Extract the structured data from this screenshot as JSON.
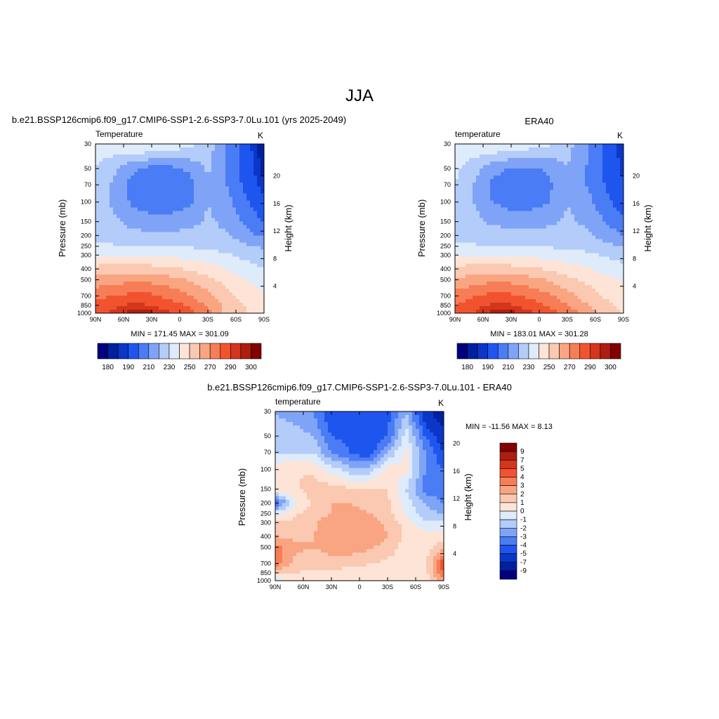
{
  "page_title": "JJA",
  "colors": {
    "abs_levels": [
      "#00007f",
      "#0020a0",
      "#0a37c8",
      "#1f55ef",
      "#4a7cf5",
      "#7fa4f7",
      "#b3ccf9",
      "#deebfb",
      "#fde4d6",
      "#fbc8b1",
      "#f9a582",
      "#f77d56",
      "#f2532f",
      "#d3361c",
      "#ad1e10",
      "#840000"
    ],
    "diff_levels": [
      "#00007f",
      "#0020a0",
      "#0a37c8",
      "#1f55ef",
      "#4a7cf5",
      "#7fa4f7",
      "#b3ccf9",
      "#deebfb",
      "#fde4d6",
      "#fbc8b1",
      "#f9a582",
      "#f77d56",
      "#f2532f",
      "#d3361c",
      "#ad1e10",
      "#840000"
    ]
  },
  "chart_data": [
    {
      "type": "heatmap",
      "title": "b.e21.BSSP126cmip6.f09_g17.CMIP6-SSP1-2.6-SSP3-7.0Lu.101 (yrs 2025-2049)",
      "left_label": "Temperature",
      "units": "K",
      "ylabel": "Pressure (mb)",
      "y2label": "Height (km)",
      "x_ticks": [
        "90N",
        "60N",
        "30N",
        "0",
        "30S",
        "60S",
        "90S"
      ],
      "y_ticks": [
        "30",
        "50",
        "70",
        "100",
        "150",
        "200",
        "250",
        "300",
        "400",
        "500",
        "700",
        "850",
        "1000"
      ],
      "y2_ticks": [
        "20",
        "16",
        "12",
        "8",
        "4"
      ],
      "stats": "MIN = 171.45  MAX = 301.09",
      "colorbar_labels": [
        "180",
        "190",
        "210",
        "230",
        "250",
        "270",
        "290",
        "300"
      ],
      "field": {
        "base": [
          [
            235,
            238,
            242,
            242,
            238,
            233,
            225,
            210,
            195,
            180
          ],
          [
            230,
            222,
            212,
            207,
            207,
            212,
            222,
            208,
            195,
            182
          ],
          [
            228,
            218,
            206,
            200,
            200,
            206,
            218,
            210,
            198,
            186
          ],
          [
            226,
            218,
            208,
            204,
            204,
            208,
            220,
            214,
            202,
            192
          ],
          [
            225,
            222,
            216,
            214,
            214,
            216,
            222,
            217,
            208,
            199
          ],
          [
            226,
            225,
            224,
            222,
            222,
            224,
            224,
            221,
            214,
            208
          ],
          [
            232,
            231,
            230,
            229,
            229,
            229,
            228,
            226,
            222,
            218
          ],
          [
            240,
            240,
            239,
            238,
            237,
            236,
            234,
            231,
            227,
            224
          ],
          [
            253,
            254,
            255,
            254,
            252,
            249,
            245,
            240,
            235,
            230
          ],
          [
            264,
            266,
            268,
            267,
            264,
            259,
            253,
            246,
            240,
            236
          ],
          [
            277,
            280,
            283,
            282,
            277,
            271,
            263,
            254,
            246,
            240
          ],
          [
            283,
            288,
            292,
            290,
            285,
            278,
            268,
            258,
            250,
            244
          ],
          [
            286,
            292,
            298,
            297,
            291,
            284,
            274,
            255,
            250,
            244
          ]
        ]
      },
      "levels": [
        180,
        185,
        190,
        200,
        210,
        220,
        230,
        240,
        250,
        260,
        270,
        280,
        290,
        295,
        300
      ]
    },
    {
      "type": "heatmap",
      "title": "ERA40",
      "left_label": "temperature",
      "units": "K",
      "ylabel": "Pressure (mb)",
      "y2label": "Height (km)",
      "x_ticks": [
        "90N",
        "60N",
        "30N",
        "0",
        "30S",
        "60S",
        "90S"
      ],
      "y_ticks": [
        "30",
        "50",
        "70",
        "100",
        "150",
        "200",
        "250",
        "300",
        "400",
        "500",
        "700",
        "850",
        "1000"
      ],
      "y2_ticks": [
        "20",
        "16",
        "12",
        "8",
        "4"
      ],
      "stats": "MIN = 183.01  MAX = 301.28",
      "colorbar_labels": [
        "180",
        "190",
        "210",
        "230",
        "250",
        "270",
        "290",
        "300"
      ],
      "field": {
        "base": [
          [
            236,
            238,
            240,
            240,
            236,
            232,
            224,
            212,
            198,
            185
          ],
          [
            232,
            224,
            214,
            208,
            208,
            212,
            220,
            210,
            198,
            188
          ],
          [
            230,
            220,
            208,
            204,
            204,
            208,
            218,
            210,
            200,
            190
          ],
          [
            228,
            220,
            210,
            206,
            206,
            210,
            220,
            214,
            204,
            194
          ],
          [
            226,
            223,
            218,
            216,
            216,
            218,
            222,
            218,
            210,
            202
          ],
          [
            226,
            226,
            225,
            224,
            224,
            224,
            224,
            222,
            216,
            210
          ],
          [
            232,
            231,
            230,
            229,
            229,
            229,
            228,
            227,
            223,
            219
          ],
          [
            240,
            240,
            239,
            238,
            237,
            236,
            234,
            232,
            229,
            226
          ],
          [
            252,
            254,
            255,
            254,
            252,
            249,
            245,
            241,
            237,
            233
          ],
          [
            262,
            265,
            268,
            267,
            264,
            259,
            253,
            248,
            243,
            239
          ],
          [
            274,
            279,
            283,
            282,
            278,
            272,
            264,
            256,
            249,
            244
          ],
          [
            280,
            286,
            292,
            291,
            286,
            279,
            270,
            261,
            253,
            247
          ],
          [
            284,
            290,
            298,
            298,
            292,
            285,
            276,
            266,
            257,
            250
          ]
        ]
      },
      "levels": [
        180,
        185,
        190,
        200,
        210,
        220,
        230,
        240,
        250,
        260,
        270,
        280,
        290,
        295,
        300
      ]
    },
    {
      "type": "heatmap",
      "title": "b.e21.BSSP126cmip6.f09_g17.CMIP6-SSP1-2.6-SSP3-7.0Lu.101 - ERA40",
      "left_label": "temperature",
      "units": "K",
      "ylabel": "Pressure (mb)",
      "y2label": "Height (km)",
      "x_ticks": [
        "90N",
        "60N",
        "30N",
        "0",
        "30S",
        "60S",
        "90S"
      ],
      "y_ticks": [
        "30",
        "50",
        "70",
        "100",
        "150",
        "200",
        "250",
        "300",
        "400",
        "500",
        "700",
        "850",
        "1000"
      ],
      "y2_ticks": [
        "20",
        "16",
        "12",
        "8",
        "4"
      ],
      "stats": "MIN = -11.56  MAX =   8.13",
      "colorbar_labels": [
        "9",
        "7",
        "5",
        "4",
        "3",
        "2",
        "1",
        "0",
        "-1",
        "-2",
        "-3",
        "-4",
        "-5",
        "-7",
        "-9"
      ],
      "field": {
        "base": [
          [
            -2,
            -2.5,
            -3,
            -5,
            -4,
            -5,
            -4.5,
            -2,
            -6,
            -9
          ],
          [
            -1.5,
            -1.5,
            -2,
            -4,
            -4.5,
            -5,
            -4,
            -0.5,
            -4,
            -6
          ],
          [
            -1,
            -1,
            -1,
            -3,
            -4,
            -5,
            -2,
            0.2,
            -3,
            -5
          ],
          [
            0.5,
            1,
            0.8,
            -0.5,
            -1.5,
            -1.5,
            0.5,
            0.3,
            -3,
            -4
          ],
          [
            0.5,
            0.8,
            1.5,
            1.5,
            1.2,
            1.2,
            1,
            -1,
            -3.5,
            -4
          ],
          [
            -4,
            -0.5,
            1.2,
            2,
            2,
            1.8,
            1.2,
            -0.5,
            -2,
            -3
          ],
          [
            -0.5,
            0.8,
            1.5,
            2,
            2.2,
            2,
            1.5,
            -0.2,
            -1.5,
            -2
          ],
          [
            1,
            1.2,
            1.8,
            2.5,
            3,
            2.5,
            1.8,
            0.5,
            -0.8,
            -1
          ],
          [
            2,
            1.8,
            2,
            2.5,
            3,
            3,
            2,
            0.8,
            0.5,
            0.8
          ],
          [
            3.5,
            2.2,
            2,
            2.2,
            2.5,
            2.2,
            1.5,
            0.5,
            0.5,
            1.5
          ],
          [
            3.5,
            1.8,
            1.5,
            1.8,
            1.5,
            1,
            0.8,
            0.5,
            0.5,
            5
          ],
          [
            1.5,
            1,
            0.8,
            0.5,
            0.3,
            0.5,
            0.5,
            0.5,
            0.5,
            4
          ],
          [
            -1,
            0.5,
            0.5,
            0.2,
            0,
            0.5,
            0.5,
            0.5,
            0.5,
            3
          ]
        ]
      },
      "levels": [
        -9,
        -7,
        -5,
        -4,
        -3,
        -2,
        -1,
        0,
        1,
        2,
        3,
        4,
        5,
        7,
        9
      ]
    }
  ]
}
